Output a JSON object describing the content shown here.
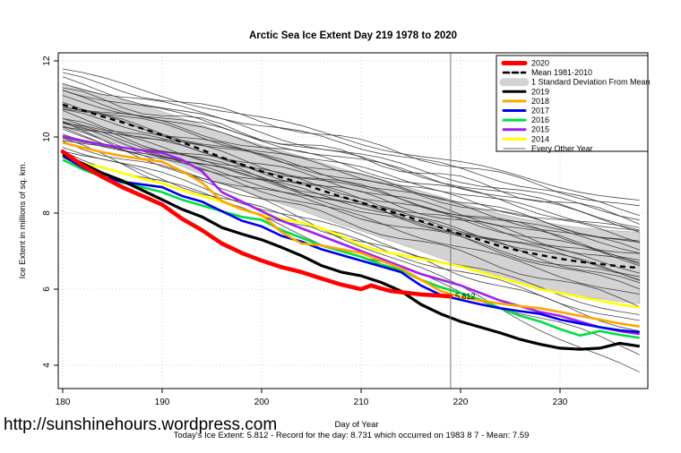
{
  "header": {
    "title": "Arctic Sea Ice Extent Day 219 1978 to 2020"
  },
  "footer": {
    "url": "http://sunshinehours.wordpress.com",
    "caption": "Today's Ice Extent: 5.812  - Record for the day: 8.731 which occurred on 1983 8 7  - Mean: 7.59"
  },
  "chart_data": {
    "type": "line",
    "title": "Arctic Sea Ice Extent Day 219 1978 to 2020",
    "xlabel": "Day of Year",
    "ylabel": "Ice Extent in millions of sq. km.",
    "x_ticks": [
      180,
      190,
      200,
      210,
      220,
      230
    ],
    "y_ticks": [
      4,
      6,
      8,
      10,
      12
    ],
    "xlim": [
      179.5,
      238.7
    ],
    "ylim": [
      3.4,
      12.2
    ],
    "grid": "dotted",
    "legend_position": "top-right",
    "vline_x": 219,
    "annotation": {
      "text": "5.812",
      "x": 219,
      "y": 5.81,
      "color": "#FF0000"
    },
    "days": [
      180,
      182,
      184,
      186,
      188,
      190,
      192,
      194,
      196,
      198,
      200,
      202,
      204,
      206,
      208,
      210,
      212,
      214,
      216,
      218,
      220,
      222,
      224,
      226,
      228,
      230,
      232,
      234,
      236,
      238
    ],
    "mean_1981_2010": {
      "label": "Mean 1981-2010",
      "color": "#000000",
      "values": [
        10.85,
        10.7,
        10.54,
        10.38,
        10.22,
        10.05,
        9.86,
        9.66,
        9.46,
        9.28,
        9.1,
        8.94,
        8.78,
        8.6,
        8.43,
        8.28,
        8.12,
        7.96,
        7.79,
        7.62,
        7.45,
        7.29,
        7.13,
        7.0,
        6.9,
        6.8,
        6.72,
        6.66,
        6.6,
        6.56
      ]
    },
    "std_band": {
      "label": "1 Standard Deviation From Mean",
      "color": "#D3D3D3",
      "sigma": [
        0.55,
        0.56,
        0.58,
        0.59,
        0.6,
        0.62,
        0.63,
        0.65,
        0.66,
        0.67,
        0.69,
        0.7,
        0.71,
        0.73,
        0.74,
        0.75,
        0.77,
        0.78,
        0.79,
        0.81,
        0.82,
        0.83,
        0.85,
        0.86,
        0.87,
        0.89,
        0.9,
        0.91,
        0.93,
        0.94
      ]
    },
    "series": [
      {
        "name": "2014",
        "color": "#FFFF00",
        "width": 2.6,
        "values": [
          9.45,
          9.3,
          9.2,
          9.05,
          8.9,
          8.78,
          8.6,
          8.45,
          8.3,
          8.1,
          7.95,
          7.85,
          7.75,
          7.6,
          7.4,
          7.15,
          7.0,
          6.9,
          6.8,
          6.7,
          6.6,
          6.45,
          6.3,
          6.15,
          6.0,
          5.9,
          5.8,
          5.7,
          5.6,
          5.52
        ]
      },
      {
        "name": "2015",
        "color": "#A020F0",
        "width": 2.6,
        "values": [
          10.02,
          9.9,
          9.8,
          9.72,
          9.65,
          9.58,
          9.4,
          9.1,
          8.55,
          8.3,
          8.05,
          7.8,
          7.6,
          7.4,
          7.2,
          7.0,
          6.8,
          6.6,
          6.4,
          6.25,
          6.1,
          5.9,
          5.7,
          5.55,
          5.4,
          5.3,
          5.15,
          5.0,
          4.9,
          4.82
        ]
      },
      {
        "name": "2016",
        "color": "#00E040",
        "width": 2.6,
        "values": [
          9.4,
          9.15,
          8.95,
          8.8,
          8.68,
          8.55,
          8.35,
          8.2,
          8.05,
          7.9,
          7.82,
          7.55,
          7.35,
          7.15,
          7.0,
          6.85,
          6.65,
          6.5,
          6.25,
          6.05,
          5.9,
          5.72,
          5.5,
          5.3,
          5.15,
          4.95,
          4.78,
          4.9,
          4.8,
          4.72
        ]
      },
      {
        "name": "2017",
        "color": "#0000EE",
        "width": 2.6,
        "values": [
          9.5,
          9.2,
          8.95,
          8.82,
          8.75,
          8.68,
          8.45,
          8.3,
          8.05,
          7.8,
          7.65,
          7.4,
          7.25,
          7.05,
          6.9,
          6.75,
          6.6,
          6.45,
          6.1,
          5.85,
          5.72,
          5.6,
          5.5,
          5.42,
          5.35,
          5.2,
          5.1,
          5.0,
          4.92,
          4.87
        ]
      },
      {
        "name": "2018",
        "color": "#FFA500",
        "width": 2.6,
        "values": [
          9.85,
          9.72,
          9.6,
          9.5,
          9.42,
          9.35,
          9.1,
          8.8,
          8.32,
          8.1,
          7.95,
          7.5,
          7.2,
          7.15,
          7.05,
          6.95,
          6.75,
          6.55,
          6.25,
          5.95,
          5.8,
          5.7,
          5.62,
          5.55,
          5.5,
          5.4,
          5.3,
          5.2,
          5.1,
          5.02
        ]
      },
      {
        "name": "2019",
        "color": "#000000",
        "width": 3.2,
        "values": [
          9.55,
          9.3,
          9.05,
          8.85,
          8.6,
          8.35,
          8.1,
          7.9,
          7.62,
          7.45,
          7.3,
          7.1,
          6.88,
          6.62,
          6.45,
          6.35,
          6.18,
          5.95,
          5.6,
          5.35,
          5.15,
          5.0,
          4.85,
          4.68,
          4.55,
          4.45,
          4.42,
          4.45,
          4.58,
          4.5
        ]
      }
    ],
    "series_2020": {
      "name": "2020",
      "color": "#FF0000",
      "width": 4.6,
      "days": [
        180,
        182,
        184,
        186,
        188,
        190,
        192,
        194,
        196,
        198,
        200,
        202,
        204,
        206,
        208,
        210,
        211,
        212,
        213,
        214,
        216,
        218,
        219
      ],
      "values": [
        9.62,
        9.25,
        8.95,
        8.68,
        8.45,
        8.22,
        7.85,
        7.55,
        7.2,
        6.95,
        6.75,
        6.58,
        6.45,
        6.28,
        6.12,
        6.0,
        6.1,
        6.02,
        5.95,
        5.92,
        5.86,
        5.83,
        5.81
      ]
    },
    "other_years": {
      "label": "Every Other Year",
      "color": "#333333",
      "width": 0.8,
      "lines": [
        {
          "s": 11.75,
          "e": 8.3,
          "b": -0.1,
          "a": 0.08,
          "p": 0.5,
          "f": 3.0
        },
        {
          "s": 11.6,
          "e": 8.1,
          "b": 0.05,
          "a": 0.1,
          "p": 1.2,
          "f": 4.0
        },
        {
          "s": 11.5,
          "e": 7.9,
          "b": -0.15,
          "a": 0.09,
          "p": 2.0,
          "f": 3.5
        },
        {
          "s": 11.4,
          "e": 8.0,
          "b": 0.1,
          "a": 0.07,
          "p": 3.1,
          "f": 4.2
        },
        {
          "s": 11.3,
          "e": 7.7,
          "b": -0.05,
          "a": 0.1,
          "p": 4.0,
          "f": 3.2
        },
        {
          "s": 11.2,
          "e": 7.8,
          "b": 0.0,
          "a": 0.12,
          "p": 0.9,
          "f": 4.5
        },
        {
          "s": 11.15,
          "e": 7.5,
          "b": -0.12,
          "a": 0.08,
          "p": 1.8,
          "f": 3.8
        },
        {
          "s": 11.05,
          "e": 7.6,
          "b": 0.08,
          "a": 0.1,
          "p": 2.7,
          "f": 3.3
        },
        {
          "s": 10.95,
          "e": 7.3,
          "b": -0.08,
          "a": 0.09,
          "p": 3.6,
          "f": 4.1
        },
        {
          "s": 10.9,
          "e": 7.45,
          "b": 0.05,
          "a": 0.11,
          "p": 4.5,
          "f": 3.6
        },
        {
          "s": 10.8,
          "e": 7.2,
          "b": -0.1,
          "a": 0.08,
          "p": 5.4,
          "f": 4.3
        },
        {
          "s": 10.75,
          "e": 7.0,
          "b": 0.0,
          "a": 0.1,
          "p": 0.3,
          "f": 3.4
        },
        {
          "s": 10.65,
          "e": 7.15,
          "b": 0.1,
          "a": 0.09,
          "p": 1.1,
          "f": 4.0
        },
        {
          "s": 10.6,
          "e": 6.9,
          "b": -0.05,
          "a": 0.12,
          "p": 2.2,
          "f": 3.7
        },
        {
          "s": 10.5,
          "e": 6.8,
          "b": 0.05,
          "a": 0.08,
          "p": 3.3,
          "f": 4.4
        },
        {
          "s": 10.45,
          "e": 7.05,
          "b": -0.1,
          "a": 0.1,
          "p": 4.2,
          "f": 3.1
        },
        {
          "s": 10.35,
          "e": 6.7,
          "b": 0.0,
          "a": 0.09,
          "p": 5.0,
          "f": 3.9
        },
        {
          "s": 10.3,
          "e": 6.6,
          "b": 0.08,
          "a": 0.11,
          "p": 0.7,
          "f": 4.2
        },
        {
          "s": 10.2,
          "e": 6.5,
          "b": -0.08,
          "a": 0.08,
          "p": 1.6,
          "f": 3.5
        },
        {
          "s": 10.15,
          "e": 6.65,
          "b": 0.05,
          "a": 0.1,
          "p": 2.5,
          "f": 4.1
        },
        {
          "s": 10.1,
          "e": 6.4,
          "b": -0.05,
          "a": 0.09,
          "p": 3.4,
          "f": 3.3
        },
        {
          "s": 10.05,
          "e": 6.3,
          "b": 0.1,
          "a": 0.08,
          "p": 4.3,
          "f": 4.0
        },
        {
          "s": 10.0,
          "e": 6.2,
          "b": -0.1,
          "a": 0.1,
          "p": 5.2,
          "f": 3.6
        },
        {
          "s": 10.45,
          "e": 6.1,
          "b": 0.0,
          "a": 0.09,
          "p": 0.4,
          "f": 4.3
        },
        {
          "s": 10.3,
          "e": 5.95,
          "b": 0.06,
          "a": 0.11,
          "p": 1.4,
          "f": 3.2
        },
        {
          "s": 10.2,
          "e": 5.8,
          "b": -0.06,
          "a": 0.08,
          "p": 2.3,
          "f": 3.8
        },
        {
          "s": 9.9,
          "e": 5.6,
          "b": 0.0,
          "a": 0.1,
          "p": 3.2,
          "f": 4.1
        },
        {
          "s": 9.8,
          "e": 5.3,
          "b": -0.08,
          "a": 0.09,
          "p": 4.1,
          "f": 3.4
        },
        {
          "s": 9.7,
          "e": 4.9,
          "b": 0.05,
          "a": 0.08,
          "p": 5.0,
          "f": 4.2
        },
        {
          "s": 9.9,
          "e": 4.35,
          "b": -0.15,
          "a": 0.1,
          "p": 0.8,
          "f": 3.5
        },
        {
          "s": 10.3,
          "e": 3.72,
          "b": 0.3,
          "a": 0.1,
          "p": 1.7,
          "f": 3.0
        },
        {
          "s": 9.6,
          "e": 5.1,
          "b": -0.05,
          "a": 0.09,
          "p": 2.9,
          "f": 3.7
        }
      ]
    },
    "legend": [
      {
        "label": "2020",
        "color": "#FF0000",
        "w": 5,
        "dash": ""
      },
      {
        "label": "Mean 1981-2010",
        "color": "#000000",
        "w": 2.6,
        "dash": "6,4"
      },
      {
        "label": "1 Standard Deviation From Mean",
        "color": "#D3D3D3",
        "w": 9,
        "dash": ""
      },
      {
        "label": "2019",
        "color": "#000000",
        "w": 3,
        "dash": ""
      },
      {
        "label": "2018",
        "color": "#FFA500",
        "w": 3,
        "dash": ""
      },
      {
        "label": "2017",
        "color": "#0000EE",
        "w": 3,
        "dash": ""
      },
      {
        "label": "2016",
        "color": "#00E040",
        "w": 3,
        "dash": ""
      },
      {
        "label": "2015",
        "color": "#A020F0",
        "w": 3,
        "dash": ""
      },
      {
        "label": "2014",
        "color": "#FFFF00",
        "w": 3,
        "dash": ""
      },
      {
        "label": "Every Other Year",
        "color": "#555555",
        "w": 0.9,
        "dash": ""
      }
    ]
  }
}
